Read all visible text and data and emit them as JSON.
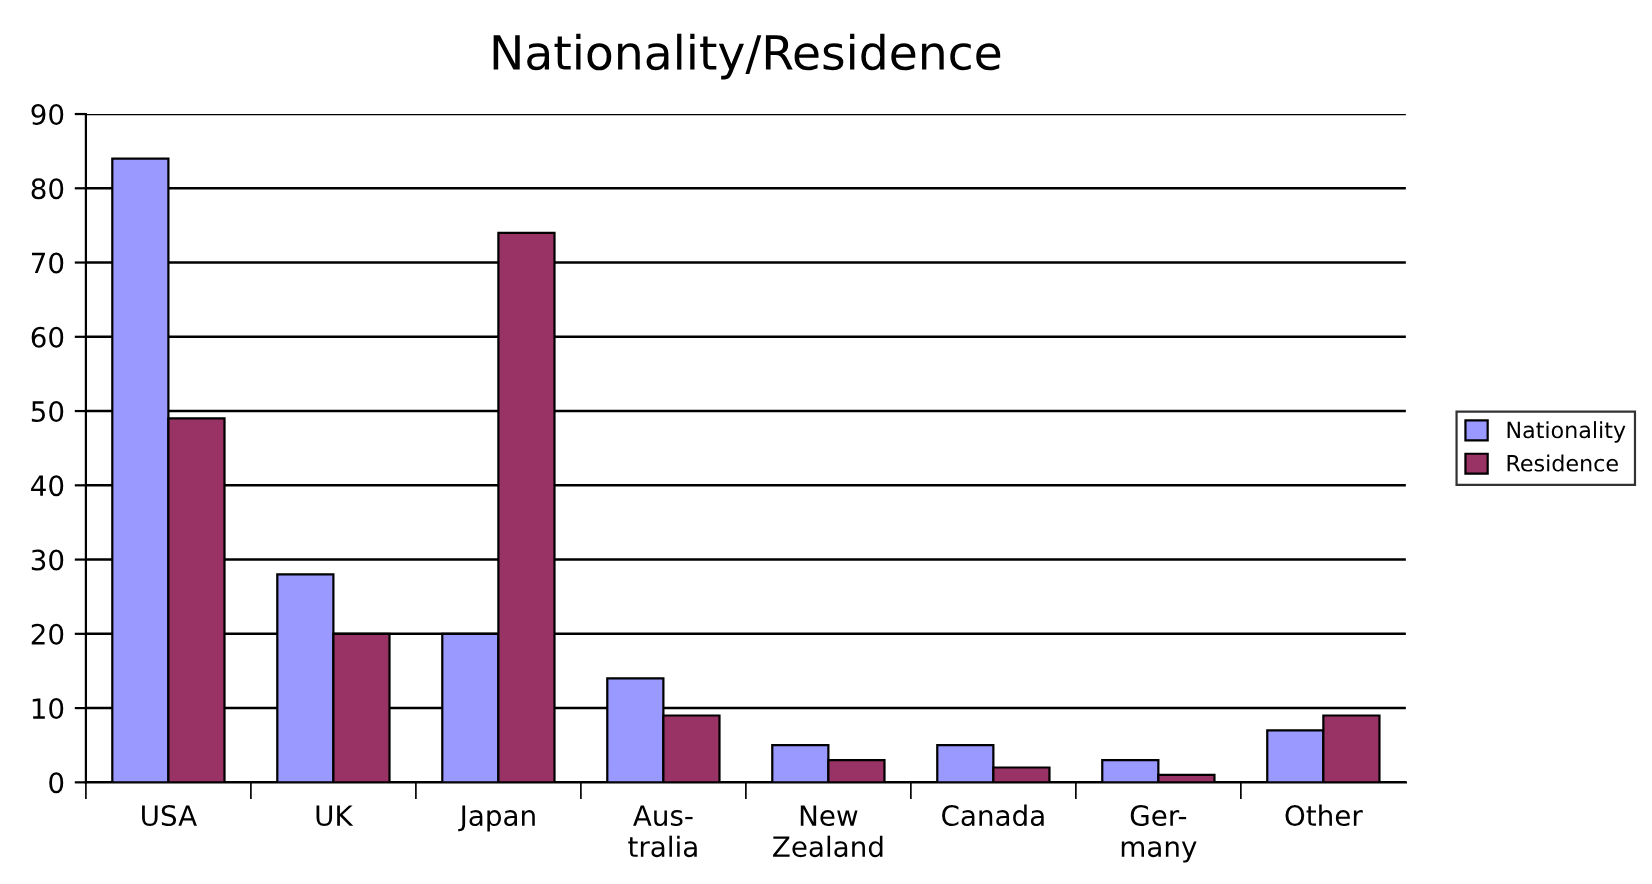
{
  "chart_data": {
    "type": "bar",
    "title": "Nationality/Residence",
    "categories": [
      "USA",
      "UK",
      "Japan",
      "Aus-\ntralia",
      "New\nZealand",
      "Canada",
      "Ger-\nmany",
      "Other"
    ],
    "series": [
      {
        "name": "Nationality",
        "color": "#9999ff",
        "values": [
          84,
          28,
          20,
          14,
          5,
          5,
          3,
          7
        ]
      },
      {
        "name": "Residence",
        "color": "#993366",
        "values": [
          49,
          20,
          74,
          9,
          3,
          2,
          1,
          9
        ]
      }
    ],
    "ylim": [
      0,
      90
    ],
    "yticks": [
      0,
      10,
      20,
      30,
      40,
      50,
      60,
      70,
      80,
      90
    ],
    "grid": "y",
    "legend": "right"
  }
}
